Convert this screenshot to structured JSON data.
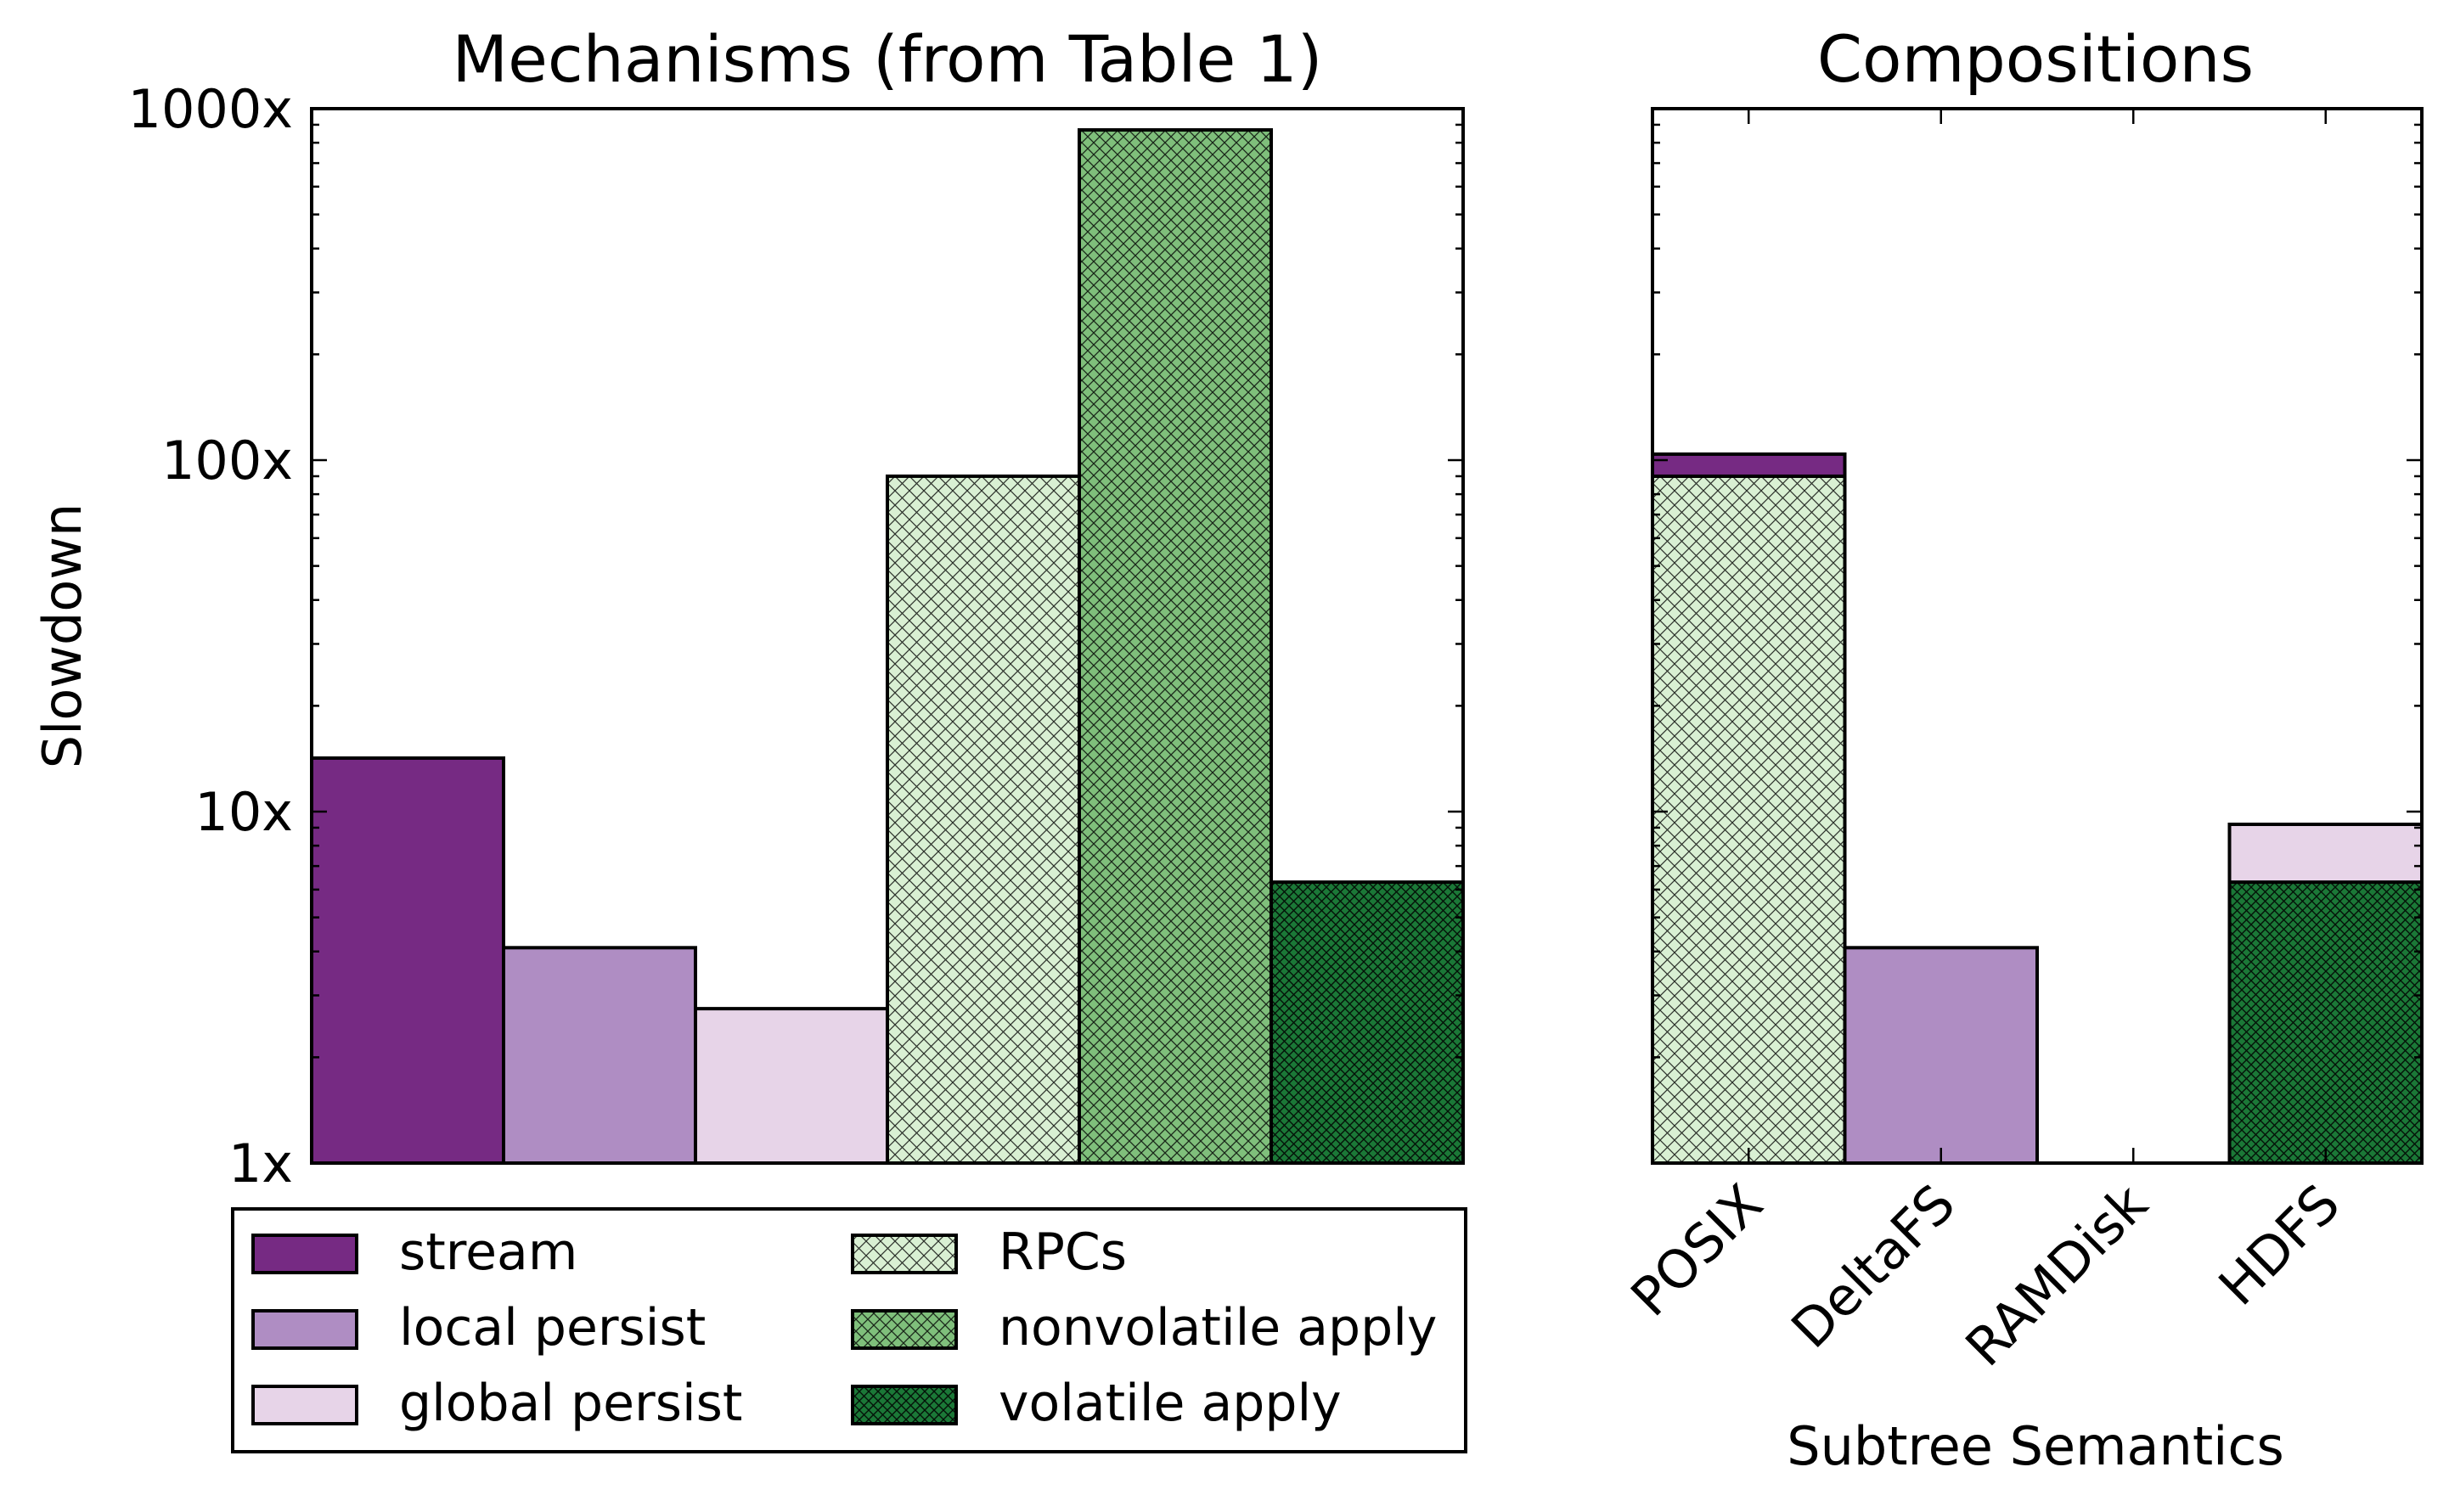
{
  "chart_data": [
    {
      "type": "bar",
      "title": "Mechanisms (from Table 1)",
      "xlabel": "",
      "ylabel": "Slowdown",
      "yscale": "log",
      "ylim": [
        1,
        1000
      ],
      "yticks": [
        {
          "value": 1,
          "label": "1x"
        },
        {
          "value": 10,
          "label": "10x"
        },
        {
          "value": 100,
          "label": "100x"
        },
        {
          "value": 1000,
          "label": "1000x"
        }
      ],
      "grid": false,
      "categories": [
        "stream",
        "local persist",
        "global persist",
        "RPCs",
        "nonvolatile apply",
        "volatile apply"
      ],
      "values": [
        14.2,
        4.1,
        2.75,
        90,
        870,
        6.3
      ]
    },
    {
      "type": "bar",
      "stacked": true,
      "title": "Compositions",
      "xlabel": "Subtree Semantics",
      "ylabel": "",
      "yscale": "log",
      "ylim": [
        1,
        1000
      ],
      "grid": false,
      "categories": [
        "POSIX",
        "DeltaFS",
        "RAMDisk",
        "HDFS"
      ],
      "stacks": [
        {
          "category": "POSIX",
          "segments": [
            {
              "mechanism": "RPCs",
              "value": 90
            },
            {
              "mechanism": "stream",
              "value": 104
            }
          ]
        },
        {
          "category": "DeltaFS",
          "segments": [
            {
              "mechanism": "local persist",
              "value": 4.1
            }
          ]
        },
        {
          "category": "RAMDisk",
          "segments": []
        },
        {
          "category": "HDFS",
          "segments": [
            {
              "mechanism": "volatile apply",
              "value": 6.3
            },
            {
              "mechanism": "global persist",
              "value": 9.2
            }
          ]
        }
      ]
    }
  ],
  "legend": {
    "placement": "below-left-panel",
    "entries": [
      {
        "label": "stream",
        "color": "#762a83",
        "hatch": "none"
      },
      {
        "label": "local persist",
        "color": "#af8dc3",
        "hatch": "none"
      },
      {
        "label": "global persist",
        "color": "#e7d4e8",
        "hatch": "none"
      },
      {
        "label": "RPCs",
        "color": "#d9f0d3",
        "hatch": "cross-sparse"
      },
      {
        "label": "nonvolatile apply",
        "color": "#7fbf7b",
        "hatch": "cross"
      },
      {
        "label": "volatile apply",
        "color": "#1b7837",
        "hatch": "cross-dense"
      }
    ]
  }
}
